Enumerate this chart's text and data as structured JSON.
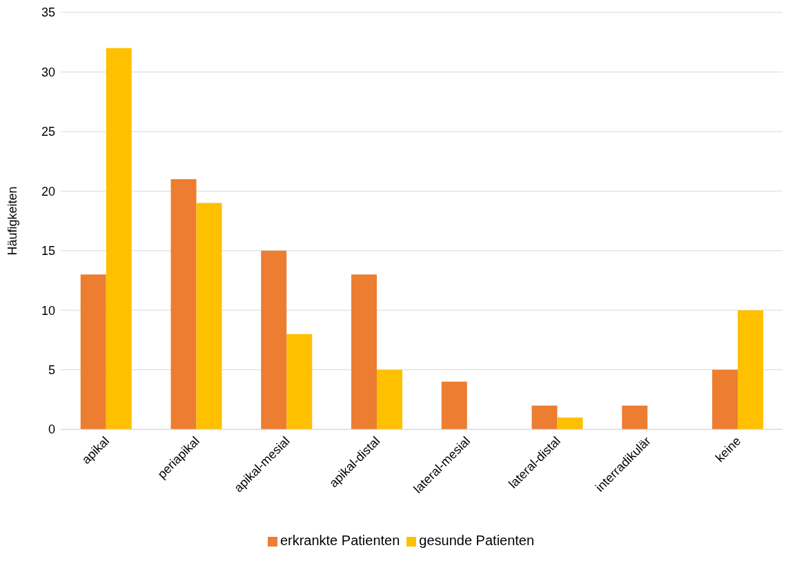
{
  "chart_data": {
    "type": "bar",
    "ylabel": "Häufigkeiten",
    "categories": [
      "apikal",
      "periapikal",
      "apikal-mesial",
      "apikal-distal",
      "lateral-mesial",
      "lateral-distal",
      "interradikulär",
      "keine"
    ],
    "series": [
      {
        "name": "erkrankte Patienten",
        "color": "#ed7d31",
        "values": [
          13,
          21,
          15,
          13,
          4,
          2,
          2,
          5
        ]
      },
      {
        "name": "gesunde Patienten",
        "color": "#ffc000",
        "values": [
          32,
          19,
          8,
          5,
          0,
          1,
          0,
          10
        ]
      }
    ],
    "ylim": [
      0,
      35
    ],
    "yticks": [
      0,
      5,
      10,
      15,
      20,
      25,
      30,
      35
    ],
    "grid": "y",
    "legend": "bottom"
  }
}
